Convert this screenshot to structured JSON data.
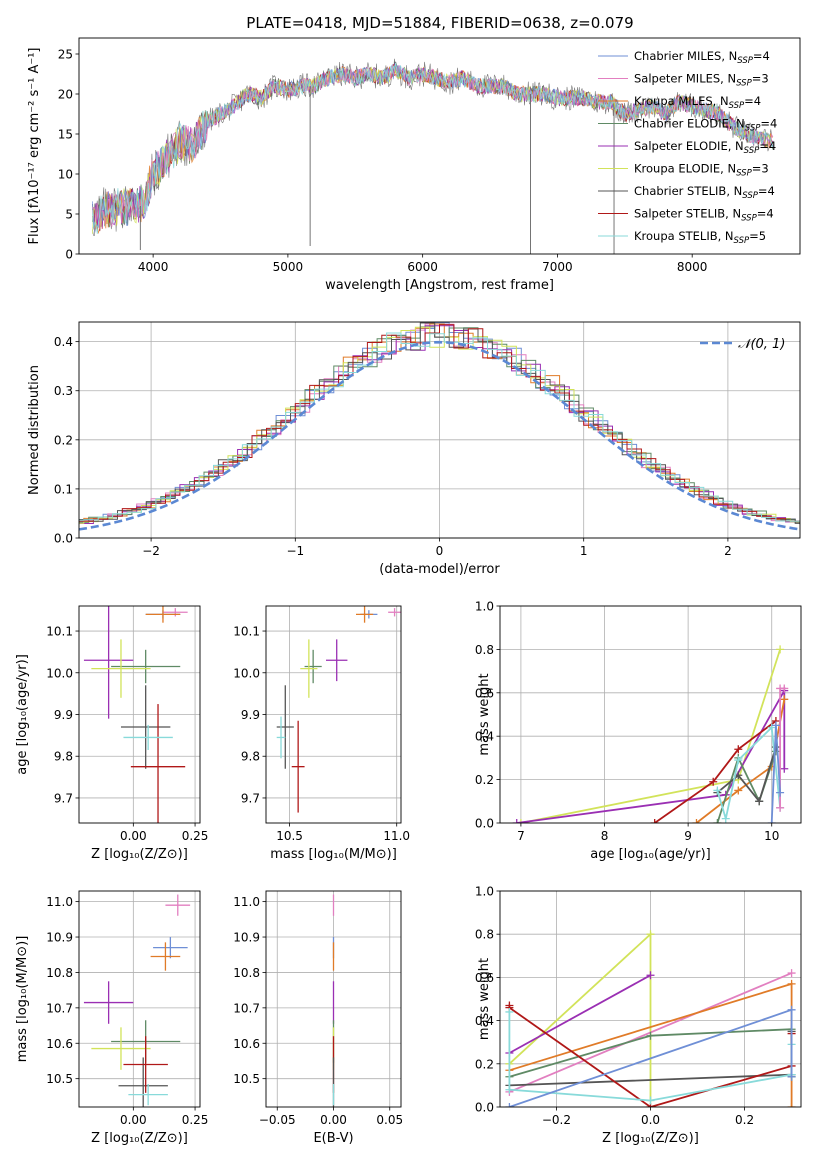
{
  "figure_title": "PLATE=0418, MJD=51884, FIBERID=0638, z=0.079",
  "colors": {
    "Chabrier MILES": "#6f8fd6",
    "Salpeter MILES": "#e27fc0",
    "Kroupa MILES": "#e07b28",
    "Chabrier ELODIE": "#5f8a65",
    "Salpeter ELODIE": "#9a2fb3",
    "Kroupa ELODIE": "#d2e35a",
    "Chabrier STELIB": "#555555",
    "Salpeter STELIB": "#b01818",
    "Kroupa STELIB": "#88dada"
  },
  "legend_spectrum": [
    {
      "model": "Chabrier MILES",
      "text": "Chabrier MILES, N",
      "nssp": "=4"
    },
    {
      "model": "Salpeter MILES",
      "text": "Salpeter MILES, N",
      "nssp": "=3"
    },
    {
      "model": "Kroupa MILES",
      "text": "Kroupa MILES, N",
      "nssp": "=4"
    },
    {
      "model": "Chabrier ELODIE",
      "text": "Chabrier ELODIE, N",
      "nssp": "=4"
    },
    {
      "model": "Salpeter ELODIE",
      "text": "Salpeter ELODIE, N",
      "nssp": "=4"
    },
    {
      "model": "Kroupa ELODIE",
      "text": "Kroupa ELODIE, N",
      "nssp": "=3"
    },
    {
      "model": "Chabrier STELIB",
      "text": "Chabrier STELIB, N",
      "nssp": "=4"
    },
    {
      "model": "Salpeter STELIB",
      "text": "Salpeter STELIB, N",
      "nssp": "=4"
    },
    {
      "model": "Kroupa STELIB",
      "text": "Kroupa STELIB, N",
      "nssp": "=5"
    }
  ],
  "chart_data": [
    {
      "id": "spectrum",
      "type": "line",
      "xlabel": "wavelength [Angstrom, rest frame]",
      "ylabel": "Flux [fλ10⁻¹⁷ erg cm⁻² s⁻¹ A⁻¹]",
      "xlim": [
        3450,
        8800
      ],
      "ylim": [
        0,
        27
      ],
      "xticks": [
        4000,
        5000,
        6000,
        7000,
        8000
      ],
      "yticks": [
        0,
        5,
        10,
        15,
        20,
        25
      ],
      "grid": false,
      "legend_position": "top-right",
      "continuum": [
        [
          3550,
          4.5
        ],
        [
          3650,
          5.5
        ],
        [
          3750,
          6
        ],
        [
          3850,
          6
        ],
        [
          3930,
          6.5
        ],
        [
          4000,
          10
        ],
        [
          4100,
          12
        ],
        [
          4200,
          14
        ],
        [
          4300,
          13.5
        ],
        [
          4400,
          16.5
        ],
        [
          4500,
          17.5
        ],
        [
          4600,
          18.5
        ],
        [
          4700,
          20
        ],
        [
          4800,
          19.5
        ],
        [
          4900,
          21
        ],
        [
          5000,
          20.5
        ],
        [
          5100,
          21
        ],
        [
          5200,
          21
        ],
        [
          5300,
          22
        ],
        [
          5400,
          22.5
        ],
        [
          5500,
          22
        ],
        [
          5600,
          22.5
        ],
        [
          5700,
          22
        ],
        [
          5800,
          23
        ],
        [
          5900,
          22
        ],
        [
          6000,
          22.5
        ],
        [
          6100,
          22
        ],
        [
          6200,
          21.5
        ],
        [
          6300,
          22
        ],
        [
          6400,
          21
        ],
        [
          6500,
          21
        ],
        [
          6600,
          21
        ],
        [
          6700,
          20
        ],
        [
          6800,
          20
        ],
        [
          6900,
          20
        ],
        [
          7000,
          19.5
        ],
        [
          7100,
          19.5
        ],
        [
          7200,
          19.5
        ],
        [
          7300,
          19
        ],
        [
          7400,
          19
        ],
        [
          7500,
          17.5
        ],
        [
          7600,
          18
        ],
        [
          7700,
          18.5
        ],
        [
          7800,
          17.5
        ],
        [
          7900,
          19
        ],
        [
          8000,
          18.5
        ],
        [
          8100,
          18
        ],
        [
          8200,
          17.5
        ],
        [
          8300,
          16
        ],
        [
          8400,
          15
        ],
        [
          8500,
          14.5
        ],
        [
          8600,
          14
        ]
      ],
      "features": [
        {
          "x": 5165,
          "ymin": 1,
          "ymax": 21
        },
        {
          "x": 3905,
          "ymin": 0.5,
          "ymax": 6
        },
        {
          "x": 6800,
          "ymin": 0,
          "ymax": 20
        },
        {
          "x": 7420,
          "ymin": 0,
          "ymax": 18
        }
      ]
    },
    {
      "id": "residuals",
      "type": "histogram",
      "xlabel": "(data-model)/error",
      "ylabel": "Normed distribution",
      "xlim": [
        -2.5,
        2.5
      ],
      "ylim": [
        0,
        0.44
      ],
      "xticks": [
        -2,
        -1,
        0,
        1,
        2
      ],
      "yticks": [
        0.0,
        0.1,
        0.2,
        0.3,
        0.4
      ],
      "grid": true,
      "reference_curve": {
        "name": "𝒩(0, 1)",
        "mean": 0,
        "sd": 1,
        "color": "#5b88d3"
      },
      "legend_position": "top-right"
    },
    {
      "id": "age-vs-Z",
      "type": "errorbar",
      "xlabel": "Z [log₁₀(Z/Z⊙)]",
      "ylabel": "age  [log₁₀(age/yr)]",
      "xlim": [
        -0.22,
        0.27
      ],
      "ylim": [
        9.64,
        10.16
      ],
      "xticks": [
        0.0,
        0.25
      ],
      "ytick_labels": [
        "9.7",
        "9.8",
        "9.9",
        "10.0",
        "10.1"
      ],
      "yticks": [
        9.7,
        9.8,
        9.9,
        10.0,
        10.1
      ],
      "grid": true,
      "points": [
        {
          "model": "Chabrier MILES",
          "x": 0.12,
          "xerr": 0.07,
          "y": 10.14,
          "yerr": 0.01
        },
        {
          "model": "Salpeter MILES",
          "x": 0.17,
          "xerr": 0.05,
          "y": 10.145,
          "yerr": 0.01
        },
        {
          "model": "Kroupa MILES",
          "x": 0.12,
          "xerr": 0.07,
          "y": 10.14,
          "yerr": 0.02
        },
        {
          "model": "Chabrier ELODIE",
          "x": 0.05,
          "xerr": 0.14,
          "y": 10.015,
          "yerr": 0.04
        },
        {
          "model": "Salpeter ELODIE",
          "x": -0.1,
          "xerr": 0.1,
          "y": 10.03,
          "yerr": 0.14
        },
        {
          "model": "Kroupa ELODIE",
          "x": -0.05,
          "xerr": 0.12,
          "y": 10.01,
          "yerr": 0.07
        },
        {
          "model": "Chabrier STELIB",
          "x": 0.05,
          "xerr": 0.1,
          "y": 9.87,
          "yerr": 0.1
        },
        {
          "model": "Salpeter STELIB",
          "x": 0.1,
          "xerr": 0.11,
          "y": 9.775,
          "yerr": 0.15
        },
        {
          "model": "Kroupa STELIB",
          "x": 0.06,
          "xerr": 0.1,
          "y": 9.845,
          "yerr": 0.03
        }
      ]
    },
    {
      "id": "age-vs-mass",
      "type": "errorbar",
      "xlabel": "mass [log₁₀(M/M⊙)]",
      "ylabel": "",
      "xlim": [
        10.39,
        11.02
      ],
      "ylim": [
        9.64,
        10.16
      ],
      "xticks": [
        10.5,
        11.0
      ],
      "yticks": [
        9.7,
        9.8,
        9.9,
        10.0,
        10.1
      ],
      "grid": true,
      "points": [
        {
          "model": "Chabrier MILES",
          "x": 10.87,
          "xerr": 0.04,
          "y": 10.14,
          "yerr": 0.01
        },
        {
          "model": "Salpeter MILES",
          "x": 10.99,
          "xerr": 0.03,
          "y": 10.145,
          "yerr": 0.01
        },
        {
          "model": "Kroupa MILES",
          "x": 10.85,
          "xerr": 0.04,
          "y": 10.14,
          "yerr": 0.02
        },
        {
          "model": "Chabrier ELODIE",
          "x": 10.61,
          "xerr": 0.04,
          "y": 10.015,
          "yerr": 0.04
        },
        {
          "model": "Salpeter ELODIE",
          "x": 10.72,
          "xerr": 0.05,
          "y": 10.03,
          "yerr": 0.05
        },
        {
          "model": "Kroupa ELODIE",
          "x": 10.59,
          "xerr": 0.04,
          "y": 10.01,
          "yerr": 0.07
        },
        {
          "model": "Chabrier STELIB",
          "x": 10.48,
          "xerr": 0.04,
          "y": 9.87,
          "yerr": 0.1
        },
        {
          "model": "Salpeter STELIB",
          "x": 10.54,
          "xerr": 0.03,
          "y": 9.775,
          "yerr": 0.11
        },
        {
          "model": "Kroupa STELIB",
          "x": 10.46,
          "xerr": 0.02,
          "y": 9.845,
          "yerr": 0.05
        }
      ]
    },
    {
      "id": "weight-vs-age",
      "type": "line",
      "xlabel": "age  [log₁₀(age/yr)]",
      "ylabel": "mass weight",
      "xlim": [
        6.75,
        10.35
      ],
      "ylim": [
        0,
        1
      ],
      "xticks": [
        7,
        8,
        9,
        10
      ],
      "yticks": [
        0.0,
        0.2,
        0.4,
        0.6,
        0.8,
        1.0
      ],
      "grid": true,
      "series": [
        {
          "model": "Kroupa ELODIE",
          "x": [
            7.0,
            9.6,
            10.1
          ],
          "y": [
            0.0,
            0.2,
            0.8
          ]
        },
        {
          "model": "Salpeter ELODIE",
          "x": [
            6.95,
            9.45,
            10.15,
            10.15
          ],
          "y": [
            0.0,
            0.13,
            0.61,
            0.25
          ]
        },
        {
          "model": "Salpeter STELIB",
          "x": [
            8.6,
            9.3,
            9.6,
            10.05
          ],
          "y": [
            0.0,
            0.19,
            0.34,
            0.47
          ]
        },
        {
          "model": "Kroupa MILES",
          "x": [
            9.1,
            9.6,
            10.0,
            10.15
          ],
          "y": [
            0.0,
            0.15,
            0.26,
            0.57
          ]
        },
        {
          "model": "Chabrier ELODIE",
          "x": [
            9.35,
            9.6,
            9.85,
            10.05
          ],
          "y": [
            0.0,
            0.3,
            0.1,
            0.33
          ]
        },
        {
          "model": "Chabrier STELIB",
          "x": [
            9.35,
            9.6,
            9.85,
            10.05
          ],
          "y": [
            0.14,
            0.22,
            0.1,
            0.35
          ]
        },
        {
          "model": "Kroupa STELIB",
          "x": [
            9.35,
            9.45,
            9.6,
            10.0,
            10.1
          ],
          "y": [
            0.15,
            0.02,
            0.29,
            0.44,
            0.07
          ]
        },
        {
          "model": "Salpeter MILES",
          "x": [
            10.1,
            10.1,
            10.15
          ],
          "y": [
            0.07,
            0.62,
            0.62
          ]
        },
        {
          "model": "Chabrier MILES",
          "x": [
            10.0,
            10.05,
            10.1
          ],
          "y": [
            0.0,
            0.45,
            0.14
          ]
        }
      ]
    },
    {
      "id": "mass-vs-Z",
      "type": "errorbar",
      "xlabel": "Z [log₁₀(Z/Z⊙)]",
      "ylabel": "mass [log₁₀(M/M⊙)]",
      "xlim": [
        -0.22,
        0.27
      ],
      "ylim": [
        10.42,
        11.03
      ],
      "xticks": [
        0.0,
        0.25
      ],
      "yticks": [
        10.5,
        10.6,
        10.7,
        10.8,
        10.9,
        11.0
      ],
      "grid": true,
      "points": [
        {
          "model": "Chabrier MILES",
          "x": 0.15,
          "xerr": 0.07,
          "y": 10.87,
          "yerr": 0.03
        },
        {
          "model": "Salpeter MILES",
          "x": 0.18,
          "xerr": 0.05,
          "y": 10.99,
          "yerr": 0.03
        },
        {
          "model": "Kroupa MILES",
          "x": 0.13,
          "xerr": 0.06,
          "y": 10.845,
          "yerr": 0.04
        },
        {
          "model": "Chabrier ELODIE",
          "x": 0.05,
          "xerr": 0.14,
          "y": 10.605,
          "yerr": 0.06
        },
        {
          "model": "Salpeter ELODIE",
          "x": -0.1,
          "xerr": 0.1,
          "y": 10.715,
          "yerr": 0.06
        },
        {
          "model": "Kroupa ELODIE",
          "x": -0.05,
          "xerr": 0.12,
          "y": 10.585,
          "yerr": 0.06
        },
        {
          "model": "Chabrier STELIB",
          "x": 0.04,
          "xerr": 0.1,
          "y": 10.48,
          "yerr": 0.08
        },
        {
          "model": "Salpeter STELIB",
          "x": 0.05,
          "xerr": 0.09,
          "y": 10.54,
          "yerr": 0.08
        },
        {
          "model": "Kroupa STELIB",
          "x": 0.06,
          "xerr": 0.08,
          "y": 10.455,
          "yerr": 0.03
        }
      ]
    },
    {
      "id": "mass-vs-ebv",
      "type": "errorbar",
      "xlabel": "E(B-V)",
      "ylabel": "",
      "xlim": [
        -0.06,
        0.06
      ],
      "ylim": [
        10.42,
        11.03
      ],
      "xticks": [
        -0.05,
        0.0,
        0.05
      ],
      "yticks": [
        10.5,
        10.6,
        10.7,
        10.8,
        10.9,
        11.0
      ],
      "grid": true,
      "points": [
        {
          "model": "Salpeter MILES",
          "x": 0.0,
          "xerr": 0.0,
          "y": 10.99,
          "yerr": 0.03
        },
        {
          "model": "Chabrier MILES",
          "x": 0.0,
          "xerr": 0.0,
          "y": 10.87,
          "yerr": 0.03
        },
        {
          "model": "Kroupa MILES",
          "x": 0.0,
          "xerr": 0.0,
          "y": 10.845,
          "yerr": 0.04
        },
        {
          "model": "Salpeter ELODIE",
          "x": 0.0,
          "xerr": 0.0,
          "y": 10.715,
          "yerr": 0.06
        },
        {
          "model": "Chabrier ELODIE",
          "x": 0.0,
          "xerr": 0.0,
          "y": 10.605,
          "yerr": 0.06
        },
        {
          "model": "Kroupa ELODIE",
          "x": 0.0,
          "xerr": 0.0,
          "y": 10.585,
          "yerr": 0.06
        },
        {
          "model": "Salpeter STELIB",
          "x": 0.0,
          "xerr": 0.0,
          "y": 10.54,
          "yerr": 0.08
        },
        {
          "model": "Chabrier STELIB",
          "x": 0.0,
          "xerr": 0.0,
          "y": 10.48,
          "yerr": 0.08
        },
        {
          "model": "Kroupa STELIB",
          "x": 0.0,
          "xerr": 0.0,
          "y": 10.455,
          "yerr": 0.03
        }
      ]
    },
    {
      "id": "weight-vs-Z",
      "type": "line",
      "xlabel": "Z [log₁₀(Z/Z⊙)]",
      "ylabel": "mass weight",
      "xlim": [
        -0.32,
        0.32
      ],
      "ylim": [
        0,
        1
      ],
      "xticks": [
        -0.2,
        0.0,
        0.2
      ],
      "yticks": [
        0.0,
        0.2,
        0.4,
        0.6,
        0.8,
        1.0
      ],
      "grid": true,
      "series": [
        {
          "model": "Kroupa ELODIE",
          "x": [
            -0.3,
            0.0,
            0.0
          ],
          "y": [
            0.2,
            0.8,
            0.03
          ]
        },
        {
          "model": "Salpeter ELODIE",
          "x": [
            -0.3,
            0.0
          ],
          "y": [
            0.25,
            0.61
          ]
        },
        {
          "model": "Salpeter MILES",
          "x": [
            -0.3,
            0.3
          ],
          "y": [
            0.07,
            0.62
          ]
        },
        {
          "model": "Kroupa MILES",
          "x": [
            -0.3,
            0.3,
            0.3
          ],
          "y": [
            0.17,
            0.57,
            0.0
          ]
        },
        {
          "model": "Chabrier ELODIE",
          "x": [
            -0.3,
            0.0,
            0.3,
            0.3
          ],
          "y": [
            0.14,
            0.33,
            0.36,
            0.14
          ]
        },
        {
          "model": "Chabrier STELIB",
          "x": [
            -0.3,
            0.3,
            0.3
          ],
          "y": [
            0.1,
            0.15,
            0.35
          ]
        },
        {
          "model": "Salpeter STELIB",
          "x": [
            -0.3,
            -0.3,
            0.0,
            0.3,
            0.3
          ],
          "y": [
            0.47,
            0.46,
            0.0,
            0.19,
            0.34
          ]
        },
        {
          "model": "Kroupa STELIB",
          "x": [
            -0.3,
            -0.3,
            0.0,
            0.3,
            0.3
          ],
          "y": [
            0.44,
            0.08,
            0.03,
            0.15,
            0.29
          ]
        },
        {
          "model": "Chabrier MILES",
          "x": [
            -0.3,
            0.3,
            0.3
          ],
          "y": [
            0.0,
            0.45,
            0.14
          ]
        }
      ]
    }
  ]
}
